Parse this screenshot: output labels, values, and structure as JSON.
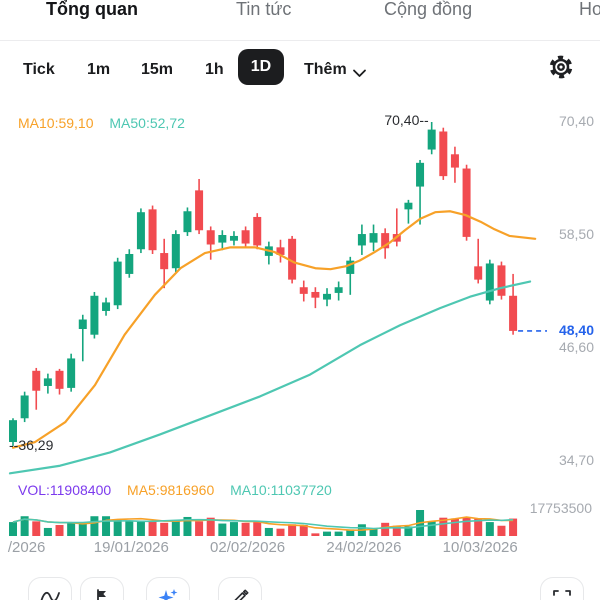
{
  "tabs": {
    "items": [
      {
        "label": "Tổng quan",
        "active": true
      },
      {
        "label": "Tin tức",
        "active": false
      },
      {
        "label": "Cộng đồng",
        "active": false
      },
      {
        "label": "Ho",
        "active": false
      }
    ]
  },
  "toolbar": {
    "timeframes": [
      {
        "label": "Tick",
        "active": false
      },
      {
        "label": "1m",
        "active": false
      },
      {
        "label": "15m",
        "active": false
      },
      {
        "label": "1h",
        "active": false
      },
      {
        "label": "1D",
        "active": true
      }
    ],
    "more_label": "Thêm"
  },
  "chart_data": {
    "type": "candlestick",
    "price_pane": {
      "legend": [
        {
          "label": "MA10:59,10",
          "color": "#f7a128"
        },
        {
          "label": "MA50:52,72",
          "color": "#4ec7b2"
        }
      ],
      "y_ticks": [
        {
          "label": "70,40",
          "value": 70.4
        },
        {
          "label": "58,50",
          "value": 58.5
        },
        {
          "label": "46,60",
          "value": 46.6
        },
        {
          "label": "34,70",
          "value": 34.7
        }
      ],
      "current_price": {
        "label": "48,40",
        "value": 48.4
      },
      "high_annotation": {
        "label": "70,40--",
        "value": 70.4
      },
      "low_annotation": {
        "label": "--36,29",
        "value": 36.29
      }
    },
    "volume_pane": {
      "legend": [
        {
          "label": "VOL:11908400",
          "color": "#7c3aed"
        },
        {
          "label": "MA5:9816960",
          "color": "#f7a128"
        },
        {
          "label": "MA10:11037720",
          "color": "#4ec7b2"
        }
      ],
      "axis_max": {
        "label": "17753500",
        "value": 17753500
      }
    },
    "x_axis": {
      "labels": [
        {
          "label": "/2026",
          "index": 1
        },
        {
          "label": "19/01/2026",
          "index": 10
        },
        {
          "label": "02/02/2026",
          "index": 20
        },
        {
          "label": "24/02/2026",
          "index": 30
        },
        {
          "label": "10/03/2026",
          "index": 40
        }
      ]
    },
    "candles": [
      {
        "o": 36.7,
        "h": 39.2,
        "l": 36.29,
        "c": 39.0,
        "v": 9500000
      },
      {
        "o": 39.2,
        "h": 42.0,
        "l": 38.8,
        "c": 41.6,
        "v": 13500000
      },
      {
        "o": 44.2,
        "h": 44.5,
        "l": 40.1,
        "c": 42.1,
        "v": 10000000
      },
      {
        "o": 42.6,
        "h": 43.9,
        "l": 41.8,
        "c": 43.4,
        "v": 5500000
      },
      {
        "o": 44.2,
        "h": 44.4,
        "l": 41.7,
        "c": 42.3,
        "v": 7500000
      },
      {
        "o": 42.4,
        "h": 46.0,
        "l": 42.0,
        "c": 45.5,
        "v": 9000000
      },
      {
        "o": 48.6,
        "h": 50.1,
        "l": 45.2,
        "c": 49.6,
        "v": 9500000
      },
      {
        "o": 48.0,
        "h": 52.5,
        "l": 47.6,
        "c": 52.1,
        "v": 13500000
      },
      {
        "o": 50.5,
        "h": 51.9,
        "l": 50.0,
        "c": 51.4,
        "v": 13500000
      },
      {
        "o": 51.1,
        "h": 56.1,
        "l": 50.7,
        "c": 55.7,
        "v": 11000000
      },
      {
        "o": 54.4,
        "h": 57.0,
        "l": 54.0,
        "c": 56.5,
        "v": 10500000
      },
      {
        "o": 57.0,
        "h": 61.3,
        "l": 56.6,
        "c": 60.9,
        "v": 10500000
      },
      {
        "o": 61.2,
        "h": 61.6,
        "l": 56.5,
        "c": 56.9,
        "v": 10000000
      },
      {
        "o": 56.6,
        "h": 58.1,
        "l": 52.9,
        "c": 54.9,
        "v": 9000000
      },
      {
        "o": 55.0,
        "h": 59.0,
        "l": 54.6,
        "c": 58.6,
        "v": 10500000
      },
      {
        "o": 58.8,
        "h": 61.4,
        "l": 58.4,
        "c": 61.0,
        "v": 13000000
      },
      {
        "o": 63.2,
        "h": 64.4,
        "l": 58.6,
        "c": 59.0,
        "v": 10000000
      },
      {
        "o": 59.0,
        "h": 59.4,
        "l": 55.9,
        "c": 57.5,
        "v": 12500000
      },
      {
        "o": 57.7,
        "h": 59.0,
        "l": 56.9,
        "c": 58.5,
        "v": 8500000
      },
      {
        "o": 57.9,
        "h": 58.9,
        "l": 57.4,
        "c": 58.4,
        "v": 9500000
      },
      {
        "o": 59.0,
        "h": 59.4,
        "l": 57.2,
        "c": 57.6,
        "v": 9000000
      },
      {
        "o": 60.4,
        "h": 60.8,
        "l": 57.0,
        "c": 57.4,
        "v": 9500000
      },
      {
        "o": 56.3,
        "h": 57.8,
        "l": 55.4,
        "c": 57.3,
        "v": 5500000
      },
      {
        "o": 57.2,
        "h": 58.0,
        "l": 55.6,
        "c": 56.4,
        "v": 5000000
      },
      {
        "o": 58.1,
        "h": 58.4,
        "l": 53.4,
        "c": 53.8,
        "v": 8000000
      },
      {
        "o": 53.0,
        "h": 53.7,
        "l": 51.5,
        "c": 52.3,
        "v": 7500000
      },
      {
        "o": 52.5,
        "h": 53.0,
        "l": 50.8,
        "c": 51.9,
        "v": 1800000
      },
      {
        "o": 51.7,
        "h": 52.9,
        "l": 51.0,
        "c": 52.3,
        "v": 3000000
      },
      {
        "o": 52.4,
        "h": 53.6,
        "l": 51.6,
        "c": 53.0,
        "v": 3000000
      },
      {
        "o": 54.4,
        "h": 56.2,
        "l": 52.2,
        "c": 55.8,
        "v": 4500000
      },
      {
        "o": 57.4,
        "h": 59.6,
        "l": 56.4,
        "c": 58.6,
        "v": 8000000
      },
      {
        "o": 57.7,
        "h": 59.6,
        "l": 56.8,
        "c": 58.7,
        "v": 5000000
      },
      {
        "o": 58.7,
        "h": 59.2,
        "l": 56.0,
        "c": 57.1,
        "v": 9000000
      },
      {
        "o": 58.6,
        "h": 61.3,
        "l": 57.3,
        "c": 57.8,
        "v": 7000000
      },
      {
        "o": 61.2,
        "h": 62.2,
        "l": 59.7,
        "c": 61.9,
        "v": 6500000
      },
      {
        "o": 63.6,
        "h": 66.4,
        "l": 59.6,
        "c": 66.1,
        "v": 17753500
      },
      {
        "o": 67.5,
        "h": 70.4,
        "l": 67.0,
        "c": 69.6,
        "v": 10000000
      },
      {
        "o": 69.4,
        "h": 69.8,
        "l": 64.3,
        "c": 64.7,
        "v": 12500000
      },
      {
        "o": 67.0,
        "h": 67.8,
        "l": 64.0,
        "c": 65.6,
        "v": 12000000
      },
      {
        "o": 65.5,
        "h": 65.9,
        "l": 57.9,
        "c": 58.3,
        "v": 12500000
      },
      {
        "o": 55.2,
        "h": 58.1,
        "l": 53.4,
        "c": 53.8,
        "v": 12000000
      },
      {
        "o": 51.6,
        "h": 55.9,
        "l": 51.2,
        "c": 55.5,
        "v": 9500000
      },
      {
        "o": 55.3,
        "h": 55.7,
        "l": 51.7,
        "c": 52.1,
        "v": 7000000
      },
      {
        "o": 52.1,
        "h": 54.4,
        "l": 48.0,
        "c": 48.4,
        "v": 11908400
      }
    ],
    "ma10": [
      [
        0,
        36.1
      ],
      [
        1.9,
        36.7
      ],
      [
        4.5,
        38.8
      ],
      [
        7.05,
        42.7
      ],
      [
        9.6,
        48.0
      ],
      [
        12.2,
        52.2
      ],
      [
        14.4,
        55.0
      ],
      [
        16.5,
        56.6
      ],
      [
        18.7,
        57.2
      ],
      [
        20.8,
        57.2
      ],
      [
        22.5,
        56.7
      ],
      [
        24.2,
        55.6
      ],
      [
        26,
        55.0
      ],
      [
        27.3,
        54.9
      ],
      [
        28.6,
        55.2
      ],
      [
        29.8,
        55.8
      ],
      [
        31.1,
        56.7
      ],
      [
        32.4,
        57.7
      ],
      [
        33.7,
        59.0
      ],
      [
        35,
        60.2
      ],
      [
        36.3,
        60.9
      ],
      [
        37.6,
        61.0
      ],
      [
        38.9,
        60.6
      ],
      [
        40.2,
        59.9
      ],
      [
        41.4,
        59.1
      ],
      [
        42.7,
        58.4
      ],
      [
        44.9,
        58.1
      ]
    ],
    "ma50": [
      [
        -0.26,
        33.4
      ],
      [
        4.04,
        34.2
      ],
      [
        8.34,
        35.6
      ],
      [
        12.64,
        37.5
      ],
      [
        16.94,
        39.5
      ],
      [
        21.24,
        41.5
      ],
      [
        25.54,
        43.8
      ],
      [
        29.84,
        46.9
      ],
      [
        33.28,
        49.0
      ],
      [
        36.72,
        50.8
      ],
      [
        39.3,
        52.0
      ],
      [
        41.88,
        52.9
      ],
      [
        44.46,
        53.6
      ]
    ],
    "colors": {
      "up": "#14a57e",
      "down": "#f14b50",
      "ma_fast": "#f7a128",
      "ma_slow": "#4ec7b2",
      "volume_label": "#7c3aed",
      "current_price": "#2563eb",
      "axis_text": "#a6aab0"
    }
  },
  "bottom_toolbar": {
    "buttons": [
      "indicators",
      "flag-marker",
      "ai-assistant",
      "draw",
      "fullscreen"
    ]
  }
}
